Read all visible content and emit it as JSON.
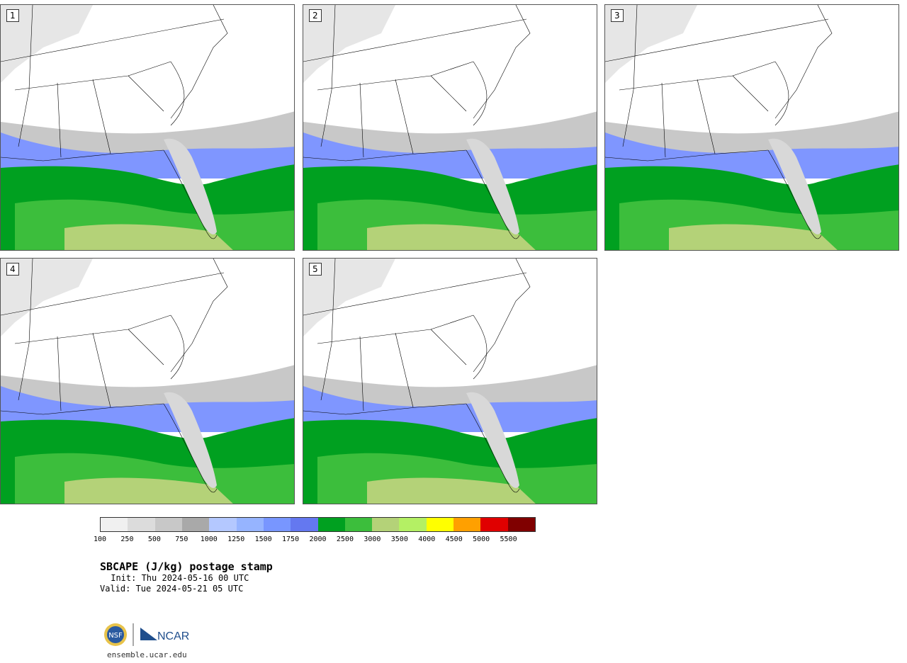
{
  "panels": [
    {
      "label": "1"
    },
    {
      "label": "2"
    },
    {
      "label": "3"
    },
    {
      "label": "4"
    },
    {
      "label": "5"
    }
  ],
  "colorbar": {
    "colors": [
      "#f0f0f0",
      "#dcdcdc",
      "#c8c8c8",
      "#a9a9a9",
      "#b4c8ff",
      "#96b4ff",
      "#7896ff",
      "#6478f0",
      "#00a020",
      "#3cbe3c",
      "#b4d278",
      "#b4f064",
      "#ffff00",
      "#ffa000",
      "#e00000",
      "#800000"
    ],
    "ticks": [
      "100",
      "250",
      "500",
      "750",
      "1000",
      "1250",
      "1500",
      "1750",
      "2000",
      "2500",
      "3000",
      "3500",
      "4000",
      "4500",
      "5000",
      "5500"
    ]
  },
  "title": "SBCAPE (J/kg) postage stamp",
  "init": " Init: Thu 2024-05-16 00 UTC",
  "valid": "Valid: Tue 2024-05-21 05 UTC",
  "logo": {
    "nsf": "NSF",
    "ncar": "NCAR"
  },
  "site": "ensemble.ucar.edu"
}
